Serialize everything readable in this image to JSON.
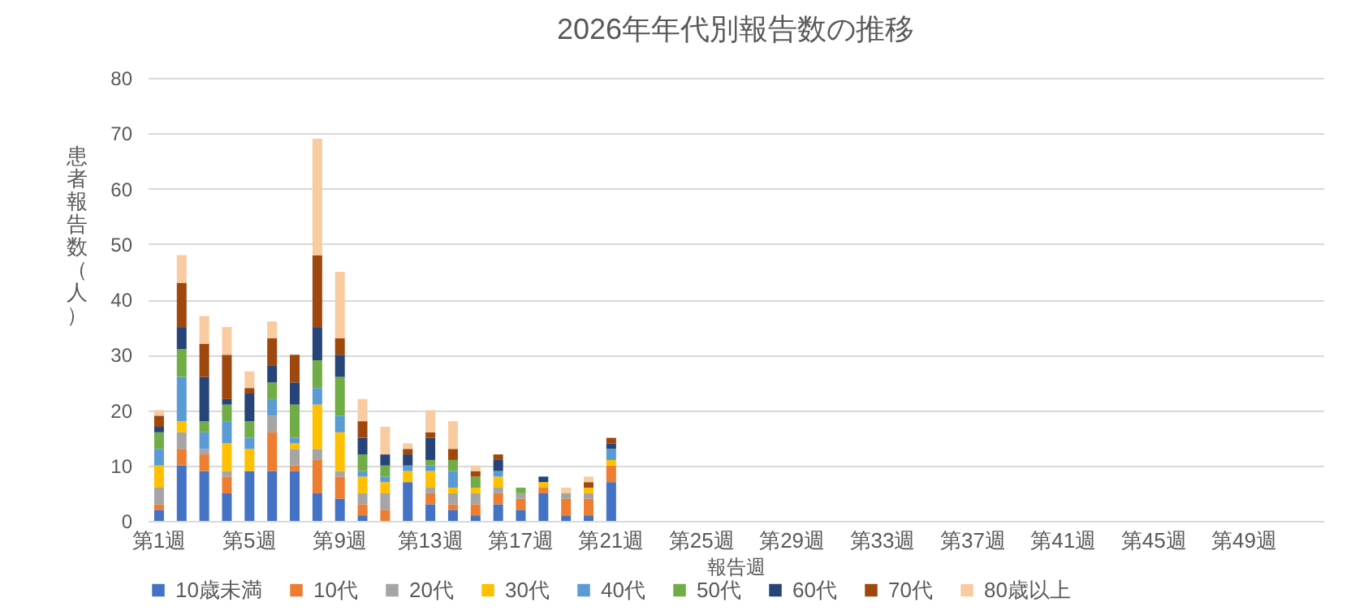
{
  "chart_data": {
    "type": "bar",
    "stacked": true,
    "title": "2026年年代別報告数の推移",
    "xlabel": "報告週",
    "ylabel": "患者報告数（人）",
    "categories": [
      "第1週",
      null,
      null,
      null,
      "第5週",
      null,
      null,
      null,
      "第9週",
      null,
      null,
      null,
      "第13週",
      null,
      null,
      null,
      "第17週",
      null,
      null,
      null,
      "第21週",
      null,
      null,
      null,
      "第25週",
      null,
      null,
      null,
      "第29週",
      null,
      null,
      null,
      "第33週",
      null,
      null,
      null,
      "第37週",
      null,
      null,
      null,
      "第41週",
      null,
      null,
      null,
      "第45週",
      null,
      null,
      null,
      "第49週",
      null,
      null,
      null
    ],
    "ylim": [
      0,
      80
    ],
    "yticks": [
      0,
      10,
      20,
      30,
      40,
      50,
      60,
      70,
      80
    ],
    "grid": "y",
    "legend": "bottom",
    "series": [
      {
        "name": "10歳未満",
        "color": "#4472c4",
        "values": [
          2,
          10,
          9,
          5,
          9,
          9,
          9,
          5,
          4,
          1,
          0,
          7,
          3,
          2,
          1,
          3,
          2,
          5,
          1,
          1,
          7,
          null,
          null,
          null,
          null,
          null,
          null,
          null,
          null,
          null,
          null,
          null,
          null,
          null,
          null,
          null,
          null,
          null,
          null,
          null,
          null,
          null,
          null,
          null,
          null,
          null,
          null,
          null,
          null,
          null,
          null,
          null
        ]
      },
      {
        "name": "10代",
        "color": "#ed7d31",
        "values": [
          1,
          3,
          3,
          3,
          0,
          7,
          1,
          6,
          4,
          2,
          2,
          0,
          2,
          1,
          2,
          2,
          2,
          1,
          3,
          3,
          3,
          null,
          null,
          null,
          null,
          null,
          null,
          null,
          null,
          null,
          null,
          null,
          null,
          null,
          null,
          null,
          null,
          null,
          null,
          null,
          null,
          null,
          null,
          null,
          null,
          null,
          null,
          null,
          null,
          null,
          null,
          null
        ]
      },
      {
        "name": "20代",
        "color": "#a5a5a5",
        "values": [
          3,
          3,
          1,
          1,
          0,
          3,
          3,
          2,
          1,
          2,
          3,
          0,
          1,
          2,
          2,
          1,
          1,
          0,
          1,
          1,
          0,
          null,
          null,
          null,
          null,
          null,
          null,
          null,
          null,
          null,
          null,
          null,
          null,
          null,
          null,
          null,
          null,
          null,
          null,
          null,
          null,
          null,
          null,
          null,
          null,
          null,
          null,
          null,
          null,
          null,
          null,
          null
        ]
      },
      {
        "name": "30代",
        "color": "#ffc000",
        "values": [
          4,
          2,
          0,
          5,
          4,
          0,
          1,
          8,
          7,
          3,
          2,
          2,
          3,
          1,
          1,
          2,
          0,
          1,
          0,
          1,
          1,
          null,
          null,
          null,
          null,
          null,
          null,
          null,
          null,
          null,
          null,
          null,
          null,
          null,
          null,
          null,
          null,
          null,
          null,
          null,
          null,
          null,
          null,
          null,
          null,
          null,
          null,
          null,
          null,
          null,
          null,
          null
        ]
      },
      {
        "name": "40代",
        "color": "#5b9bd5",
        "values": [
          3,
          8,
          3,
          4,
          2,
          3,
          1,
          3,
          3,
          1,
          1,
          1,
          1,
          3,
          0,
          1,
          0,
          0,
          0,
          0,
          2,
          null,
          null,
          null,
          null,
          null,
          null,
          null,
          null,
          null,
          null,
          null,
          null,
          null,
          null,
          null,
          null,
          null,
          null,
          null,
          null,
          null,
          null,
          null,
          null,
          null,
          null,
          null,
          null,
          null,
          null,
          null
        ]
      },
      {
        "name": "50代",
        "color": "#70ad47",
        "values": [
          3,
          5,
          2,
          3,
          3,
          3,
          6,
          5,
          7,
          3,
          2,
          0,
          1,
          2,
          2,
          0,
          1,
          0,
          0,
          0,
          0,
          null,
          null,
          null,
          null,
          null,
          null,
          null,
          null,
          null,
          null,
          null,
          null,
          null,
          null,
          null,
          null,
          null,
          null,
          null,
          null,
          null,
          null,
          null,
          null,
          null,
          null,
          null,
          null,
          null,
          null,
          null
        ]
      },
      {
        "name": "60代",
        "color": "#264478",
        "values": [
          1,
          4,
          8,
          1,
          5,
          3,
          4,
          6,
          4,
          3,
          2,
          2,
          4,
          0,
          0,
          2,
          0,
          1,
          0,
          0,
          1,
          null,
          null,
          null,
          null,
          null,
          null,
          null,
          null,
          null,
          null,
          null,
          null,
          null,
          null,
          null,
          null,
          null,
          null,
          null,
          null,
          null,
          null,
          null,
          null,
          null,
          null,
          null,
          null,
          null,
          null,
          null
        ]
      },
      {
        "name": "70代",
        "color": "#9e480e",
        "values": [
          2,
          8,
          6,
          8,
          1,
          5,
          5,
          13,
          3,
          3,
          0,
          1,
          1,
          2,
          1,
          1,
          0,
          0,
          0,
          1,
          1,
          null,
          null,
          null,
          null,
          null,
          null,
          null,
          null,
          null,
          null,
          null,
          null,
          null,
          null,
          null,
          null,
          null,
          null,
          null,
          null,
          null,
          null,
          null,
          null,
          null,
          null,
          null,
          null,
          null,
          null,
          null
        ]
      },
      {
        "name": "80歳以上",
        "color": "#f8cba0",
        "values": [
          1,
          5,
          5,
          5,
          3,
          3,
          0,
          21,
          12,
          4,
          5,
          1,
          4,
          5,
          1,
          0,
          0,
          0,
          1,
          1,
          0,
          null,
          null,
          null,
          null,
          null,
          null,
          null,
          null,
          null,
          null,
          null,
          null,
          null,
          null,
          null,
          null,
          null,
          null,
          null,
          null,
          null,
          null,
          null,
          null,
          null,
          null,
          null,
          null,
          null,
          null,
          null
        ]
      }
    ]
  }
}
